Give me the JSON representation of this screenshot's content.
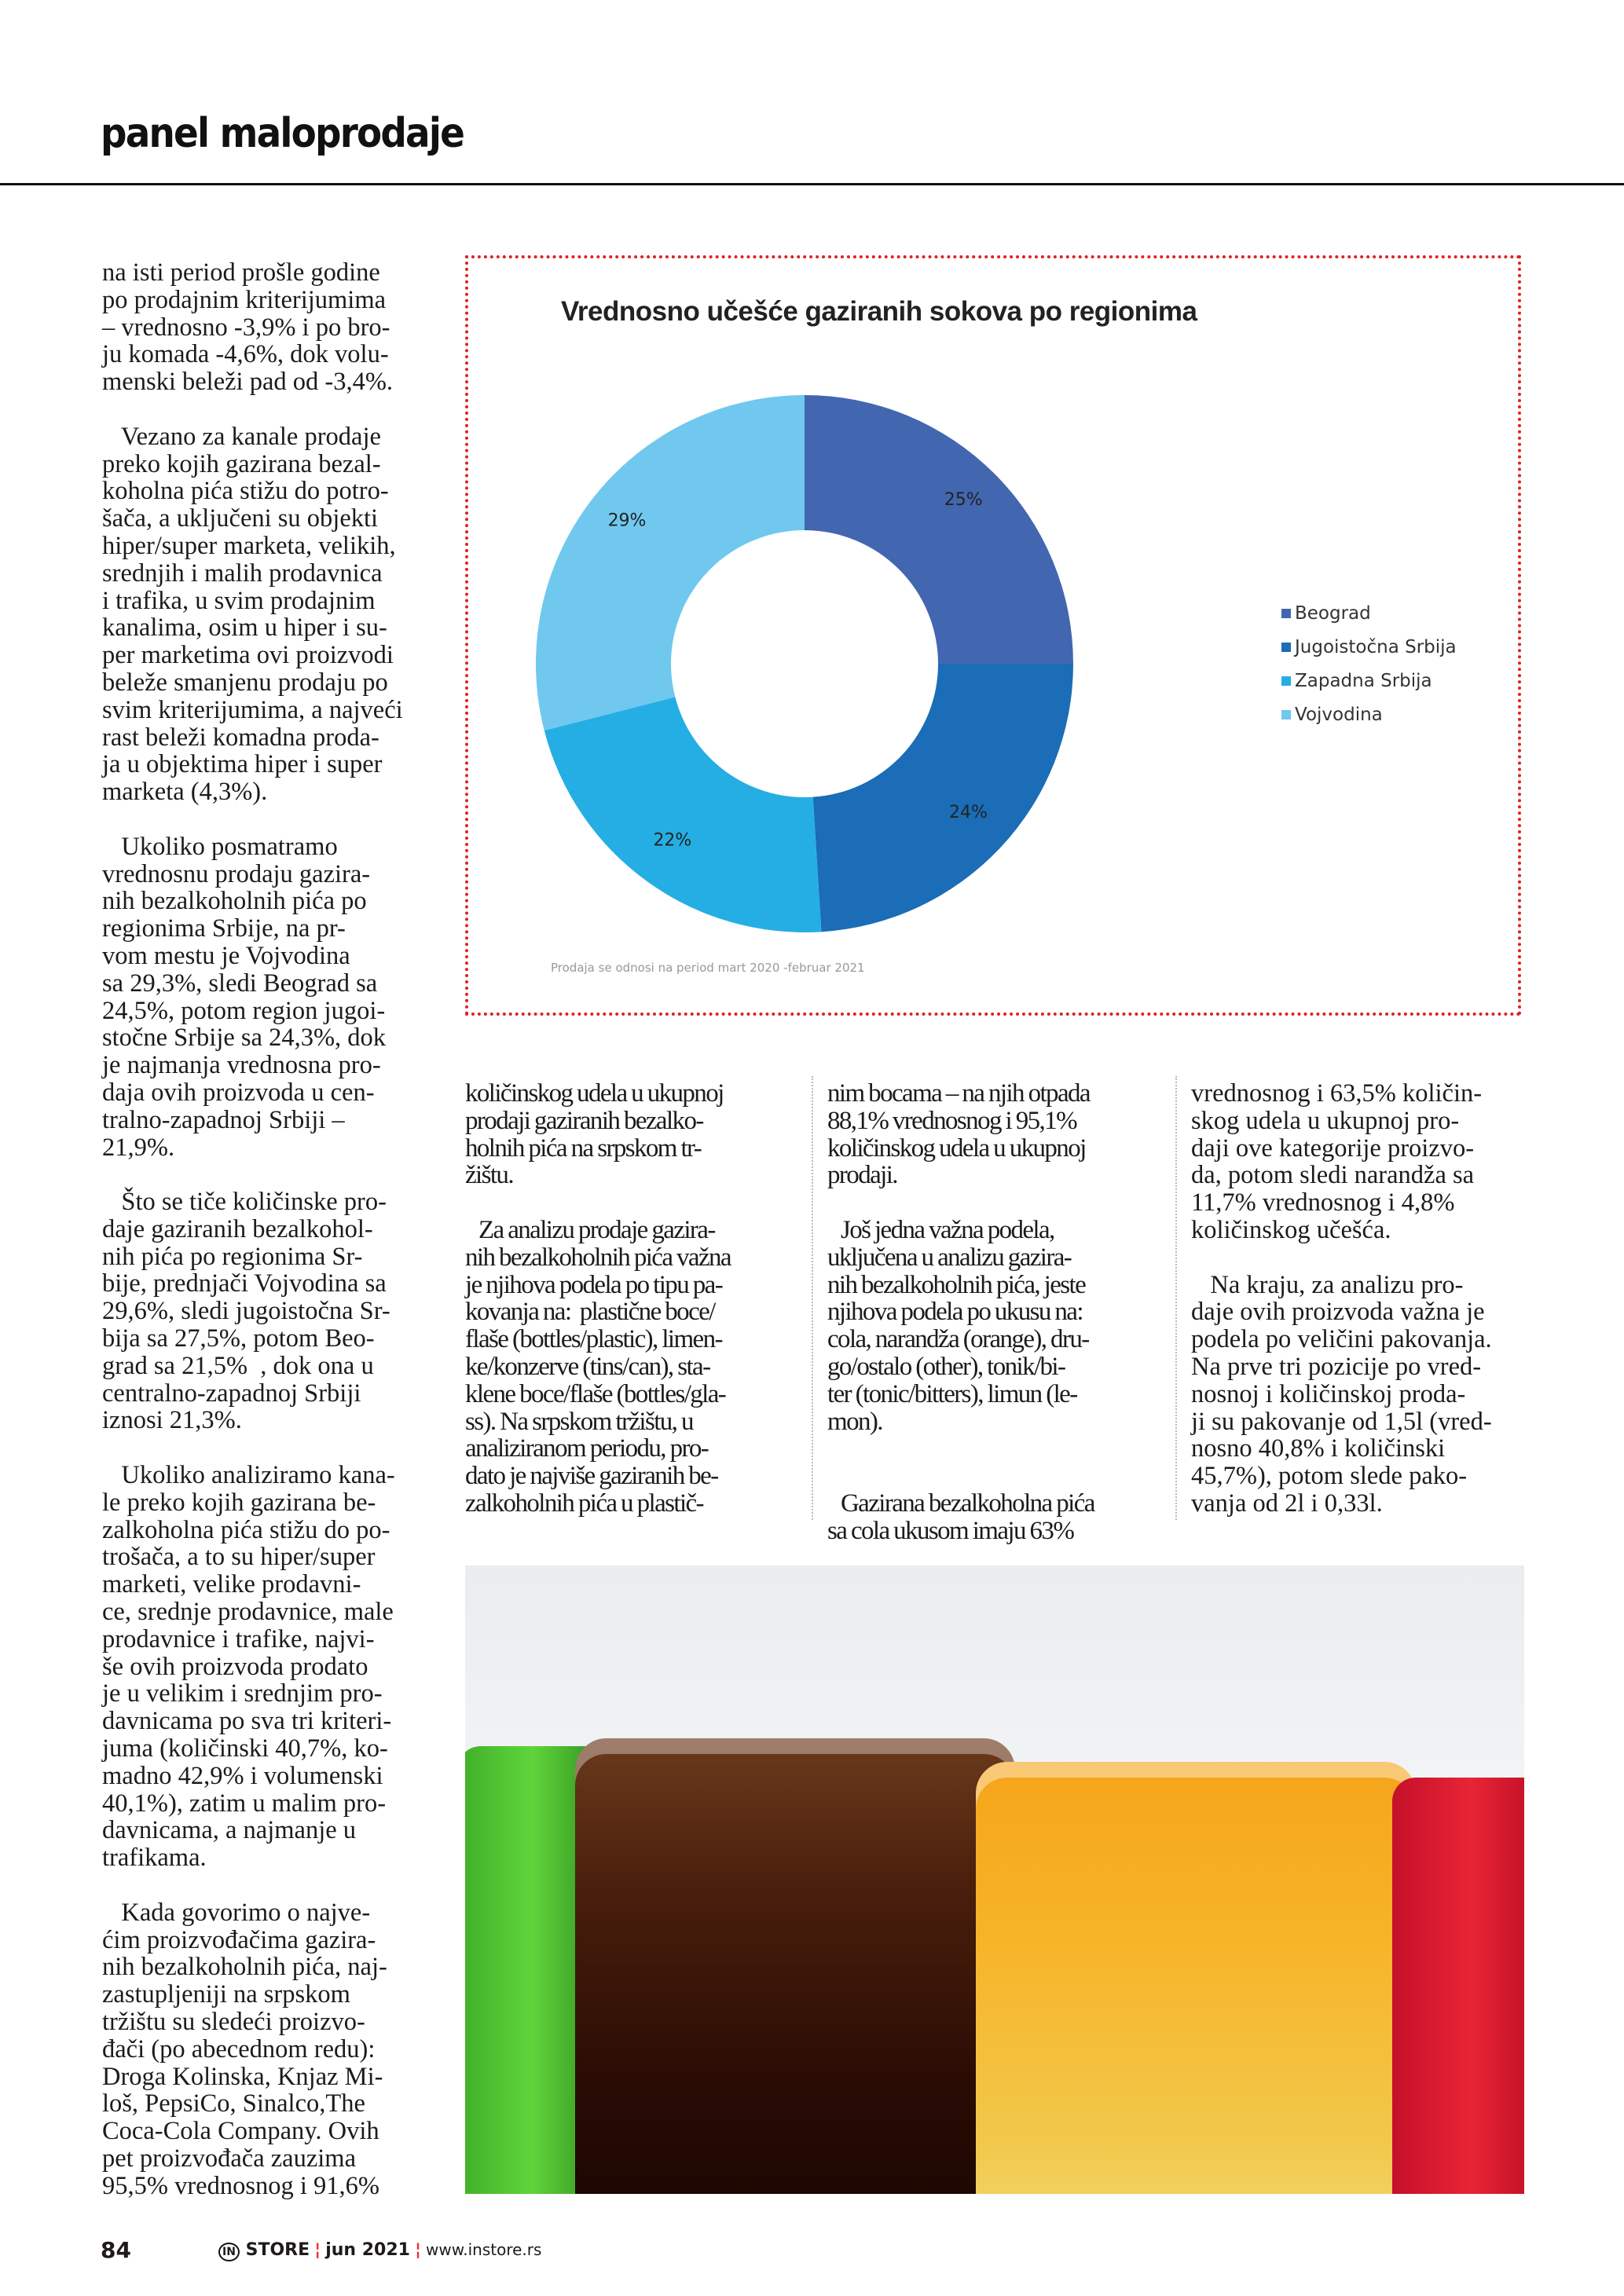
{
  "header": {
    "section_title": "panel maloprodaje"
  },
  "article": {
    "left_column": [
      [
        "na isti period prošle godine",
        "po prodajnim kriterijumima",
        "– vrednosno -3,9% i po bro-",
        "ju komada -4,6%, dok volu-",
        "menski beleži pad od -3,4%."
      ],
      [
        "   Vezano za kanale prodaje",
        "preko kojih gazirana bezal-",
        "koholna pića stižu do potro-",
        "šača, a uključeni su objekti",
        "hiper/super marketa, velikih,",
        "srednjih i malih prodavnica",
        "i trafika, u svim prodajnim",
        "kanalima, osim u hiper i su-",
        "per marketima ovi proizvodi",
        "beleže smanjenu prodaju po",
        "svim kriterijumima, a najveći",
        "rast beleži komadna proda-",
        "ja u objektima hiper i super",
        "marketa (4,3%)."
      ],
      [
        "   Ukoliko posmatramo",
        "vrednosnu prodaju gazira-",
        "nih bezalkoholnih pića po",
        "regionima Srbije, na pr-",
        "vom mestu je Vojvodina",
        "sa 29,3%, sledi Beograd sa",
        "24,5%, potom region jugoi-",
        "stočne Srbije sa 24,3%, dok",
        "je najmanja vrednosna pro-",
        "daja ovih proizvoda u cen-",
        "tralno-zapadnoj Srbiji –",
        "21,9%."
      ],
      [
        "   Što se tiče količinske pro-",
        "daje gaziranih bezalkohol-",
        "nih pića po regionima Sr-",
        "bije, prednjači Vojvodina sa",
        "29,6%, sledi jugoistočna Sr-",
        "bija sa 27,5%, potom Beo-",
        "grad sa 21,5%  , dok ona u",
        "centralno-zapadnoj Srbiji",
        "iznosi 21,3%."
      ],
      [
        "   Ukoliko analiziramo kana-",
        "le preko kojih gazirana be-",
        "zalkoholna pića stižu do po-",
        "trošača, a to su hiper/super",
        "marketi, velike prodavni-",
        "ce, srednje prodavnice, male",
        "prodavnice i trafike, najvi-",
        "še ovih proizvoda prodato",
        "je u velikim i srednjim pro-",
        "davnicama po sva tri kriteri-",
        "juma (količinski 40,7%, ko-",
        "madno 42,9% i volumenski",
        "40,1%), zatim u malim pro-",
        "davnicama, a najmanje u",
        "trafikama."
      ],
      [
        "   Kada govorimo o najve-",
        "ćim proizvođačima gazira-",
        "nih bezalkoholnih pića, naj-",
        "zastupljeniji na srpskom",
        "tržištu su sledeći proizvo-",
        "đači (po abecednom redu):",
        "Droga Kolinska, Knjaz Mi-",
        "loš, PepsiCo, Sinalco,The",
        "Coca-Cola Company. Ovih",
        "pet proizvođača zauzima",
        "95,5% vrednosnog i 91,6%"
      ]
    ],
    "bottom_column_1": [
      [
        "količinskog udela u ukupnoj",
        "prodaji gaziranih bezalko-",
        "holnih pića na srpskom tr-",
        "žištu."
      ],
      [
        "   Za analizu prodaje gazira-",
        "nih bezalkoholnih pića važna",
        "je njihova podela po tipu pa-",
        "kovanja na:  plastične boce/",
        "flaše (bottles/plastic), limen-",
        "ke/konzerve (tins/can), sta-",
        "klene boce/flaše (bottles/gla-",
        "ss). Na srpskom tržištu, u",
        "analiziranom periodu, pro-",
        "dato je najviše gaziranih be-",
        "zalkoholnih pića u plastič-"
      ]
    ],
    "bottom_column_2": [
      [
        "nim bocama – na njih otpada",
        "88,1% vrednosnog i 95,1%",
        "količinskog udela u ukupnoj",
        "prodaji."
      ],
      [
        "   Još jedna važna podela,",
        "uključena u analizu gazira-",
        "nih bezalkoholnih pića, jeste",
        "njihova podela po ukusu na:",
        "cola, narandža (orange), dru-",
        "go/ostalo (other), tonik/bi-",
        "ter (tonic/bitters), limun (le-",
        "mon)."
      ],
      [
        "",
        "   Gazirana bezalkoholna pića",
        "sa cola ukusom imaju 63%"
      ]
    ],
    "bottom_column_3": [
      [
        "vrednosnog i 63,5% količin-",
        "skog udela u ukupnoj pro-",
        "daji ove kategorije proizvo-",
        "da, potom sledi narandža sa",
        "11,7% vrednosnog i 4,8%",
        "količinskog učešća."
      ],
      [
        "   Na kraju, za analizu pro-",
        "daje ovih proizvoda važna je",
        "podela po veličini pakovanja.",
        "Na prve tri pozicije po vred-",
        "nosnoj i količinskoj proda-",
        "ji su pakovanje od 1,5l (vred-",
        "nosno 40,8% i količinski",
        "45,7%), potom slede pako-",
        "vanja od 2l i 0,33l."
      ]
    ]
  },
  "chart_data": {
    "type": "pie",
    "style": "donut",
    "title": "Vrednosno učešće gaziranih sokova po regionima",
    "categories": [
      "Beograd",
      "Jugoistočna Srbija",
      "Zapadna Srbija",
      "Vojvodina"
    ],
    "values": [
      25,
      24,
      22,
      29
    ],
    "data_labels": [
      "25%",
      "24%",
      "22%",
      "29%"
    ],
    "colors": [
      "#4266b0",
      "#1a6db6",
      "#25aee3",
      "#70c8ef"
    ],
    "legend_position": "right",
    "footnote": "Prodaja se odnosi na period mart 2020 -februar 2021"
  },
  "photo": {
    "icon": "carbonated-drinks-photo"
  },
  "footer": {
    "page_number": "84",
    "magazine_logo": "IN",
    "magazine_name": "STORE",
    "issue": "jun 2021",
    "website": "www.instore.rs"
  }
}
